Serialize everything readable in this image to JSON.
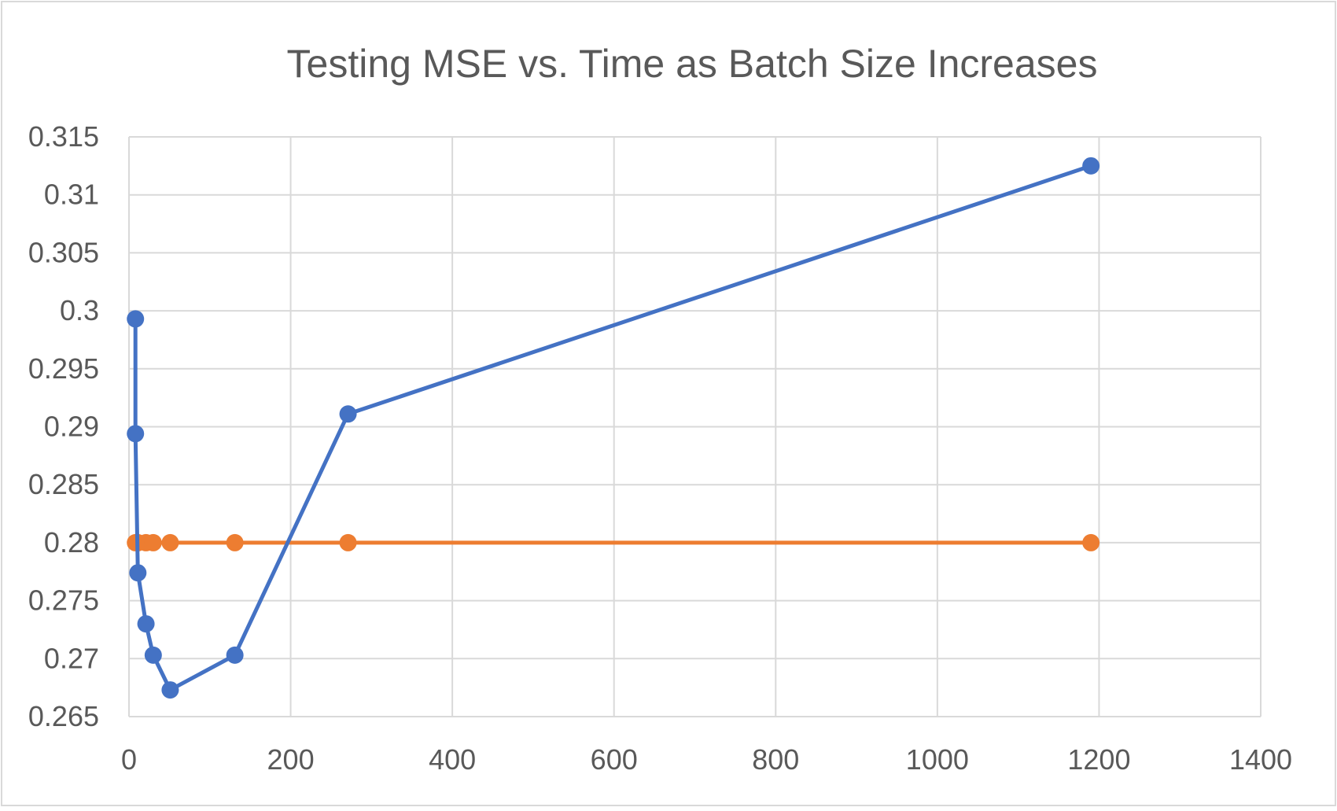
{
  "chart_data": {
    "type": "scatter",
    "title": "Testing MSE vs. Time as Batch Size Increases",
    "xlabel": "",
    "ylabel": "",
    "xlim": [
      0,
      1400
    ],
    "ylim": [
      0.265,
      0.315
    ],
    "x_ticks": [
      "0",
      "200",
      "400",
      "600",
      "800",
      "1000",
      "1200",
      "1400"
    ],
    "y_ticks": [
      "0.265",
      "0.27",
      "0.275",
      "0.28",
      "0.285",
      "0.29",
      "0.295",
      "0.3",
      "0.305",
      "0.31",
      "0.315"
    ],
    "grid": true,
    "legend": "none",
    "series": [
      {
        "color": "#4472C4",
        "points": [
          [
            8,
            0.2993
          ],
          [
            8,
            0.2894
          ],
          [
            11,
            0.2774
          ],
          [
            21,
            0.273
          ],
          [
            30,
            0.2703
          ],
          [
            51,
            0.2673
          ],
          [
            131,
            0.2703
          ],
          [
            271,
            0.2911
          ],
          [
            1190,
            0.3125
          ]
        ]
      },
      {
        "color": "#ED7D31",
        "points": [
          [
            8,
            0.28
          ],
          [
            11,
            0.28
          ],
          [
            21,
            0.28
          ],
          [
            30,
            0.28
          ],
          [
            51,
            0.28
          ],
          [
            131,
            0.28
          ],
          [
            271,
            0.28
          ],
          [
            1190,
            0.28
          ]
        ]
      }
    ]
  }
}
